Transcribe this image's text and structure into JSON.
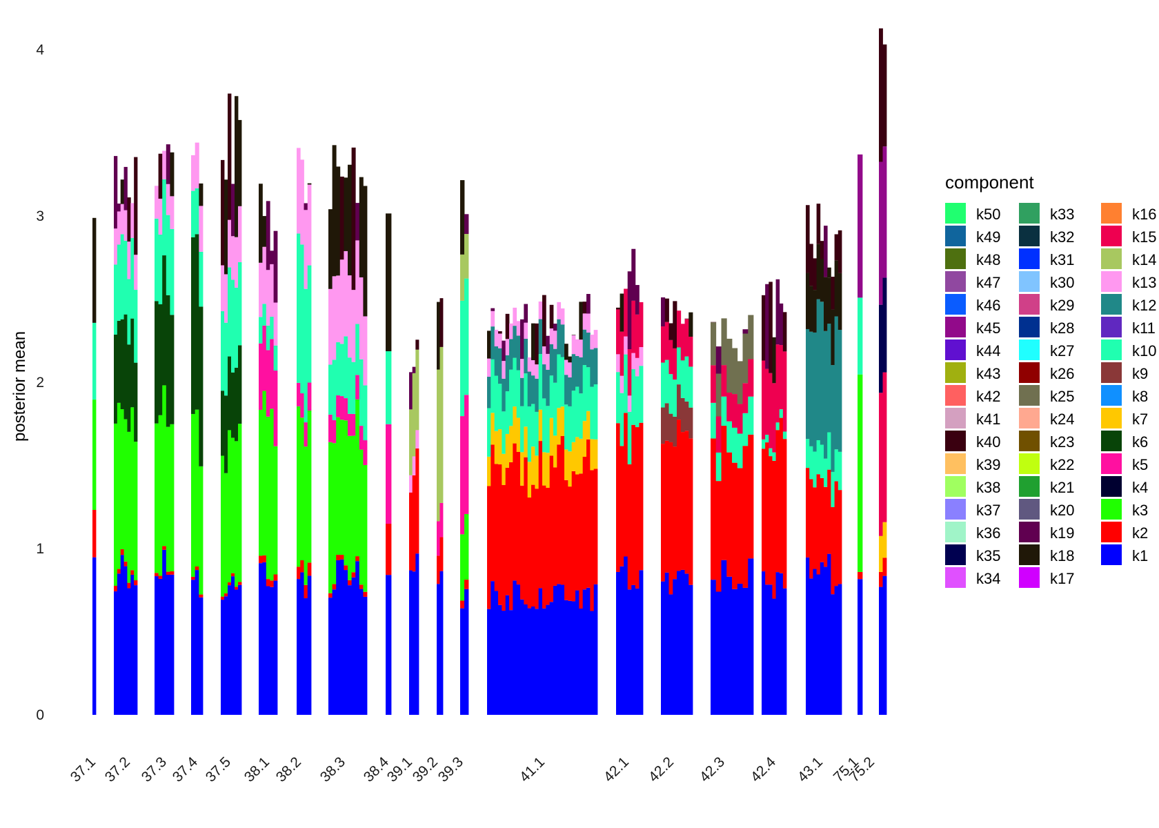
{
  "chart_data": {
    "type": "bar",
    "stacked": true,
    "xlabel": "",
    "ylabel": "posterior mean",
    "ylim": [
      0,
      4
    ],
    "yticks": [
      "0",
      "1",
      "2",
      "3",
      "4"
    ],
    "grid": false,
    "legend_title": "component",
    "legend_position": "right",
    "legend": [
      {
        "name": "k50",
        "color": "#20ff70"
      },
      {
        "name": "k49",
        "color": "#10659d"
      },
      {
        "name": "k48",
        "color": "#4e7010"
      },
      {
        "name": "k47",
        "color": "#9048a0"
      },
      {
        "name": "k46",
        "color": "#0a5cff"
      },
      {
        "name": "k45",
        "color": "#920a8a"
      },
      {
        "name": "k44",
        "color": "#6010d0"
      },
      {
        "name": "k43",
        "color": "#a0b010"
      },
      {
        "name": "k42",
        "color": "#ff6060"
      },
      {
        "name": "k41",
        "color": "#d4a0c0"
      },
      {
        "name": "k40",
        "color": "#3a0010"
      },
      {
        "name": "k39",
        "color": "#ffc060"
      },
      {
        "name": "k38",
        "color": "#a0ff60"
      },
      {
        "name": "k37",
        "color": "#8a80ff"
      },
      {
        "name": "k36",
        "color": "#a0f4c8"
      },
      {
        "name": "k35",
        "color": "#000050"
      },
      {
        "name": "k34",
        "color": "#e050ff"
      },
      {
        "name": "k33",
        "color": "#30a060"
      },
      {
        "name": "k32",
        "color": "#0a3040"
      },
      {
        "name": "k31",
        "color": "#0030ff"
      },
      {
        "name": "k30",
        "color": "#80c4ff"
      },
      {
        "name": "k29",
        "color": "#d04088"
      },
      {
        "name": "k28",
        "color": "#003090"
      },
      {
        "name": "k27",
        "color": "#20ffff"
      },
      {
        "name": "k26",
        "color": "#900000"
      },
      {
        "name": "k25",
        "color": "#707050"
      },
      {
        "name": "k24",
        "color": "#ffa890"
      },
      {
        "name": "k23",
        "color": "#705000"
      },
      {
        "name": "k22",
        "color": "#c0ff10"
      },
      {
        "name": "k21",
        "color": "#20a030"
      },
      {
        "name": "k20",
        "color": "#605880"
      },
      {
        "name": "k19",
        "color": "#600050"
      },
      {
        "name": "k18",
        "color": "#201808"
      },
      {
        "name": "k17",
        "color": "#d000ff"
      },
      {
        "name": "k16",
        "color": "#ff8030"
      },
      {
        "name": "k15",
        "color": "#ee0050"
      },
      {
        "name": "k14",
        "color": "#a8c860"
      },
      {
        "name": "k13",
        "color": "#ff98f0"
      },
      {
        "name": "k12",
        "color": "#208888"
      },
      {
        "name": "k11",
        "color": "#6028c0"
      },
      {
        "name": "k10",
        "color": "#20ffb0"
      },
      {
        "name": "k9",
        "color": "#8a3838"
      },
      {
        "name": "k8",
        "color": "#1090ff"
      },
      {
        "name": "k7",
        "color": "#ffc800"
      },
      {
        "name": "k6",
        "color": "#084408"
      },
      {
        "name": "k5",
        "color": "#ff10a0"
      },
      {
        "name": "k4",
        "color": "#000030"
      },
      {
        "name": "k3",
        "color": "#20ff00"
      },
      {
        "name": "k2",
        "color": "#ff0000"
      },
      {
        "name": "k1",
        "color": "#0000ff"
      }
    ],
    "groups": [
      {
        "label": "37.1",
        "n": 1,
        "k1": 0.95,
        "k2": 0.28,
        "k3": 0.75,
        "k10": 0.5,
        "top": 3.05
      },
      {
        "label": "37.2",
        "n": 7,
        "k1": 0.85,
        "k2": 0.03,
        "k3": 0.95,
        "k6": 0.55,
        "k10": 0.45,
        "k13": 0.2,
        "top": 3.3
      },
      {
        "label": "37.3",
        "n": 5,
        "k1": 0.88,
        "k2": 0.02,
        "k3": 0.9,
        "k6": 0.75,
        "k10": 0.45,
        "k13": 0.2,
        "top": 3.2
      },
      {
        "label": "37.4",
        "n": 3,
        "k1": 0.82,
        "k2": 0.02,
        "k3": 0.9,
        "k6": 0.95,
        "k10": 0.3,
        "k13": 0.25,
        "top": 3.45
      },
      {
        "label": "37.5",
        "n": 6,
        "k1": 0.8,
        "k2": 0.02,
        "k3": 0.85,
        "k6": 0.45,
        "k10": 0.5,
        "k13": 0.3,
        "top": 3.5
      },
      {
        "label": "38.1",
        "n": 5,
        "k1": 0.8,
        "k2": 0.04,
        "k3": 0.9,
        "k5": 0.4,
        "k10": 0.15,
        "k13": 0.3,
        "top": 3.0
      },
      {
        "label": "38.2",
        "n": 4,
        "k1": 0.78,
        "k2": 0.08,
        "k3": 0.9,
        "k5": 0.15,
        "k10": 0.8,
        "k13": 0.5,
        "top": 3.4
      },
      {
        "label": "38.3",
        "n": 10,
        "k1": 0.82,
        "k2": 0.03,
        "k3": 0.85,
        "k5": 0.15,
        "k10": 0.35,
        "k13": 0.45,
        "top": 3.2
      },
      {
        "label": "38.4",
        "n": 1,
        "k1": 0.92,
        "k2": 0.3,
        "k3": 0.0,
        "k5": 0.6,
        "k10": 0.5,
        "top": 3.35
      },
      {
        "label": "39.1",
        "n": 3,
        "k1": 0.88,
        "k2": 0.55,
        "k14": 0.45,
        "k13": 0.1,
        "top": 2.25
      },
      {
        "label": "39.2",
        "n": 2,
        "k1": 0.92,
        "k2": 0.18,
        "k5": 0.2,
        "k14": 1.05,
        "top": 2.45
      },
      {
        "label": "39.3",
        "n": 2,
        "k1": 0.75,
        "k2": 0.05,
        "k3": 0.45,
        "k5": 0.75,
        "k10": 0.8,
        "k14": 0.3,
        "top": 3.25
      },
      {
        "label": "41.1",
        "n": 30,
        "k1": 0.72,
        "k2": 0.78,
        "k7": 0.2,
        "k10": 0.3,
        "k12": 0.2,
        "k13": 0.1,
        "top": 2.35
      },
      {
        "label": "42.1",
        "n": 7,
        "k1": 0.85,
        "k2": 0.85,
        "k10": 0.35,
        "k15": 0.3,
        "k13": 0.1,
        "top": 2.65
      },
      {
        "label": "42.2",
        "n": 8,
        "k1": 0.8,
        "k2": 0.85,
        "k9": 0.2,
        "k10": 0.25,
        "k15": 0.2,
        "top": 2.45
      },
      {
        "label": "42.3",
        "n": 8,
        "k1": 0.82,
        "k2": 0.75,
        "k10": 0.2,
        "k25": 0.3,
        "k15": 0.2,
        "top": 2.25
      },
      {
        "label": "42.4",
        "n": 7,
        "k1": 0.82,
        "k2": 0.85,
        "k10": 0.05,
        "k15": 0.45,
        "top": 2.45
      },
      {
        "label": "43.1",
        "n": 10,
        "k1": 0.85,
        "k2": 0.55,
        "k10": 0.2,
        "k12": 0.75,
        "k18": 0.3,
        "top": 2.9
      },
      {
        "label": "75.1",
        "n": 1,
        "k1": 0.95,
        "k2": 0.05,
        "k3": 1.05,
        "k10": 0.5,
        "k45": 0.8,
        "top": 3.6
      },
      {
        "label": "75.2",
        "n": 2,
        "k1": 0.9,
        "k2": 0.1,
        "k7": 0.2,
        "k15": 0.8,
        "k35": 0.5,
        "k45": 0.9,
        "top": 3.9
      }
    ]
  }
}
